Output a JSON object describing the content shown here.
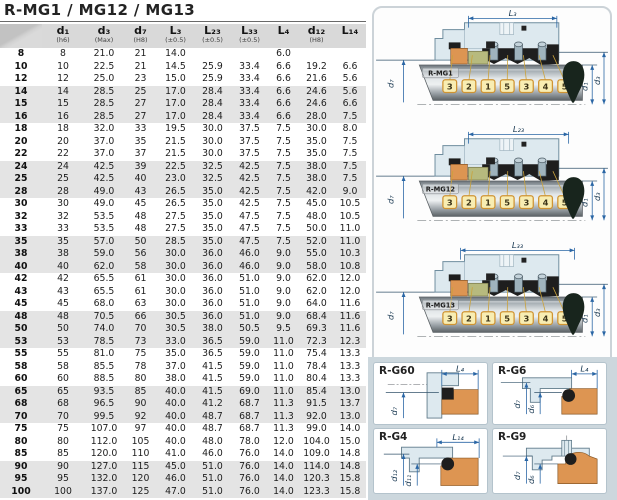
{
  "title": "R-MG1 / MG12 / MG13",
  "table": {
    "columns": [
      {
        "label": "",
        "note": ""
      },
      {
        "label": "d₁",
        "note": "(h6)"
      },
      {
        "label": "d₃",
        "note": "(Max)"
      },
      {
        "label": "d₇",
        "note": "(H8)"
      },
      {
        "label": "L₃",
        "note": "(±0.5)"
      },
      {
        "label": "L₂₃",
        "note": "(±0.5)"
      },
      {
        "label": "L₃₃",
        "note": "(±0.5)"
      },
      {
        "label": "L₄",
        "note": ""
      },
      {
        "label": "d₁₂",
        "note": "(H8)"
      },
      {
        "label": "L₁₄",
        "note": ""
      }
    ],
    "rows": [
      [
        "8",
        "8",
        "21.0",
        "21",
        "14.0",
        "",
        "",
        "6.0",
        "",
        ""
      ],
      [
        "10",
        "10",
        "22.5",
        "21",
        "14.5",
        "25.9",
        "33.4",
        "6.6",
        "19.2",
        "6.6"
      ],
      [
        "12",
        "12",
        "25.0",
        "23",
        "15.0",
        "25.9",
        "33.4",
        "6.6",
        "21.6",
        "5.6"
      ],
      [
        "14",
        "14",
        "28.5",
        "25",
        "17.0",
        "28.4",
        "33.4",
        "6.6",
        "24.6",
        "5.6"
      ],
      [
        "15",
        "15",
        "28.5",
        "27",
        "17.0",
        "28.4",
        "33.4",
        "6.6",
        "24.6",
        "6.6"
      ],
      [
        "16",
        "16",
        "28.5",
        "27",
        "17.0",
        "28.4",
        "33.4",
        "6.6",
        "28.0",
        "7.5"
      ],
      [
        "18",
        "18",
        "32.0",
        "33",
        "19.5",
        "30.0",
        "37.5",
        "7.5",
        "30.0",
        "8.0"
      ],
      [
        "20",
        "20",
        "37.0",
        "35",
        "21.5",
        "30.0",
        "37.5",
        "7.5",
        "35.0",
        "7.5"
      ],
      [
        "22",
        "22",
        "37.0",
        "37",
        "21.5",
        "30.0",
        "37.5",
        "7.5",
        "35.0",
        "7.5"
      ],
      [
        "24",
        "24",
        "42.5",
        "39",
        "22.5",
        "32.5",
        "42.5",
        "7.5",
        "38.0",
        "7.5"
      ],
      [
        "25",
        "25",
        "42.5",
        "40",
        "23.0",
        "32.5",
        "42.5",
        "7.5",
        "38.0",
        "7.5"
      ],
      [
        "28",
        "28",
        "49.0",
        "43",
        "26.5",
        "35.0",
        "42.5",
        "7.5",
        "42.0",
        "9.0"
      ],
      [
        "30",
        "30",
        "49.0",
        "45",
        "26.5",
        "35.0",
        "42.5",
        "7.5",
        "45.0",
        "10.5"
      ],
      [
        "32",
        "32",
        "53.5",
        "48",
        "27.5",
        "35.0",
        "47.5",
        "7.5",
        "48.0",
        "10.5"
      ],
      [
        "33",
        "33",
        "53.5",
        "48",
        "27.5",
        "35.0",
        "47.5",
        "7.5",
        "50.0",
        "11.0"
      ],
      [
        "35",
        "35",
        "57.0",
        "50",
        "28.5",
        "35.0",
        "47.5",
        "7.5",
        "52.0",
        "11.0"
      ],
      [
        "38",
        "38",
        "59.0",
        "56",
        "30.0",
        "36.0",
        "46.0",
        "9.0",
        "55.0",
        "10.3"
      ],
      [
        "40",
        "40",
        "62.0",
        "58",
        "30.0",
        "36.0",
        "46.0",
        "9.0",
        "58.0",
        "10.8"
      ],
      [
        "42",
        "42",
        "65.5",
        "61",
        "30.0",
        "36.0",
        "51.0",
        "9.0",
        "62.0",
        "12.0"
      ],
      [
        "43",
        "43",
        "65.5",
        "61",
        "30.0",
        "36.0",
        "51.0",
        "9.0",
        "62.0",
        "12.0"
      ],
      [
        "45",
        "45",
        "68.0",
        "63",
        "30.0",
        "36.0",
        "51.0",
        "9.0",
        "64.0",
        "11.6"
      ],
      [
        "48",
        "48",
        "70.5",
        "66",
        "30.5",
        "36.0",
        "51.0",
        "9.0",
        "68.4",
        "11.6"
      ],
      [
        "50",
        "50",
        "74.0",
        "70",
        "30.5",
        "38.0",
        "50.5",
        "9.5",
        "69.3",
        "11.6"
      ],
      [
        "53",
        "53",
        "78.5",
        "73",
        "33.0",
        "36.5",
        "59.0",
        "11.0",
        "72.3",
        "12.3"
      ],
      [
        "55",
        "55",
        "81.0",
        "75",
        "35.0",
        "36.5",
        "59.0",
        "11.0",
        "75.4",
        "13.3"
      ],
      [
        "58",
        "58",
        "85.5",
        "78",
        "37.0",
        "41.5",
        "59.0",
        "11.0",
        "78.4",
        "13.3"
      ],
      [
        "60",
        "60",
        "88.5",
        "80",
        "38.0",
        "41.5",
        "59.0",
        "11.0",
        "80.4",
        "13.3"
      ],
      [
        "65",
        "65",
        "93.5",
        "85",
        "40.0",
        "41.5",
        "69.0",
        "11.0",
        "85.4",
        "13.0"
      ],
      [
        "68",
        "68",
        "96.5",
        "90",
        "40.0",
        "41.2",
        "68.7",
        "11.3",
        "91.5",
        "13.7"
      ],
      [
        "70",
        "70",
        "99.5",
        "92",
        "40.0",
        "48.7",
        "68.7",
        "11.3",
        "92.0",
        "13.0"
      ],
      [
        "75",
        "75",
        "107.0",
        "97",
        "40.0",
        "48.7",
        "68.7",
        "11.3",
        "99.0",
        "14.0"
      ],
      [
        "80",
        "80",
        "112.0",
        "105",
        "40.0",
        "48.0",
        "78.0",
        "12.0",
        "104.0",
        "15.0"
      ],
      [
        "85",
        "85",
        "120.0",
        "110",
        "41.0",
        "46.0",
        "76.0",
        "14.0",
        "109.0",
        "14.8"
      ],
      [
        "90",
        "90",
        "127.0",
        "115",
        "45.0",
        "51.0",
        "76.0",
        "14.0",
        "114.0",
        "14.8"
      ],
      [
        "95",
        "95",
        "132.0",
        "120",
        "46.0",
        "51.0",
        "76.0",
        "14.0",
        "120.3",
        "15.8"
      ],
      [
        "100",
        "100",
        "137.0",
        "125",
        "47.0",
        "51.0",
        "76.0",
        "14.0",
        "123.3",
        "15.8"
      ]
    ]
  },
  "diagrams": [
    {
      "label": "R-MG1",
      "dim_top": "L₃",
      "dim_left": "d₇",
      "dim_right_inner": "d₁",
      "dim_right_outer": "d₃",
      "badges": [
        "3",
        "2",
        "1",
        "5",
        "3",
        "4",
        "5"
      ]
    },
    {
      "label": "R-MG12",
      "dim_top": "L₂₃",
      "dim_left": "d₇",
      "dim_right_inner": "d₁",
      "dim_right_outer": "d₃",
      "badges": [
        "3",
        "2",
        "1",
        "5",
        "3",
        "4",
        "5"
      ]
    },
    {
      "label": "R-MG13",
      "dim_top": "L₃₃",
      "dim_left": "d₇",
      "dim_right_inner": "d₁",
      "dim_right_outer": "d₃",
      "badges": [
        "3",
        "2",
        "1",
        "5",
        "3",
        "4",
        "5"
      ]
    }
  ],
  "seat_boxes": [
    {
      "label": "R-G60",
      "dim_top": "L₄",
      "dims_left": [
        "d₇"
      ]
    },
    {
      "label": "R-G6",
      "dim_top": "L₄",
      "dims_left": [
        "d₇",
        "d₆"
      ]
    },
    {
      "label": "R-G4",
      "dim_top": "L₁₄",
      "dims_left": [
        "d₁₂",
        "d₁₁"
      ]
    },
    {
      "label": "R-G9",
      "dim_top": "",
      "dims_left": [
        "d₇",
        "d₆"
      ]
    }
  ],
  "colors": {
    "dim_blue": "#2a66a5",
    "ref_line": "#33536b",
    "orange_seat": "#dd9552",
    "olive_face": "#b7ba7e",
    "badge_fill": "#f8edb2",
    "badge_border": "#cf9433",
    "leader_gold": "#c9a23c",
    "housing_blue": "#dde9ef",
    "housing_stroke": "#6f8d9e",
    "black_part": "#1e1e1e",
    "drop_dark": "#18251d",
    "panel_gray": "#ccd7dd",
    "stripe_gray": "#e4e4e4",
    "header_gray": "#d9d9d9",
    "steel": "#9fb3bd"
  }
}
